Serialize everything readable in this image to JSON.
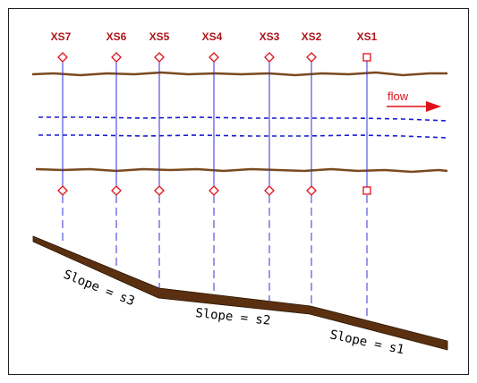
{
  "cross_sections": [
    {
      "label": "XS7",
      "marker": "diamond"
    },
    {
      "label": "XS6",
      "marker": "diamond"
    },
    {
      "label": "XS5",
      "marker": "diamond"
    },
    {
      "label": "XS4",
      "marker": "diamond"
    },
    {
      "label": "XS3",
      "marker": "diamond"
    },
    {
      "label": "XS2",
      "marker": "diamond"
    },
    {
      "label": "XS1",
      "marker": "square"
    }
  ],
  "flow": {
    "label": "flow"
  },
  "slopes": [
    {
      "label": "Slope = s3"
    },
    {
      "label": "Slope = s2"
    },
    {
      "label": "Slope = s1"
    }
  ],
  "colors": {
    "bank": "#7a4a1f",
    "water": "#1a1ad0",
    "marker": "#e0101a",
    "label": "#b0141b",
    "bed_fill": "#5a3010"
  }
}
